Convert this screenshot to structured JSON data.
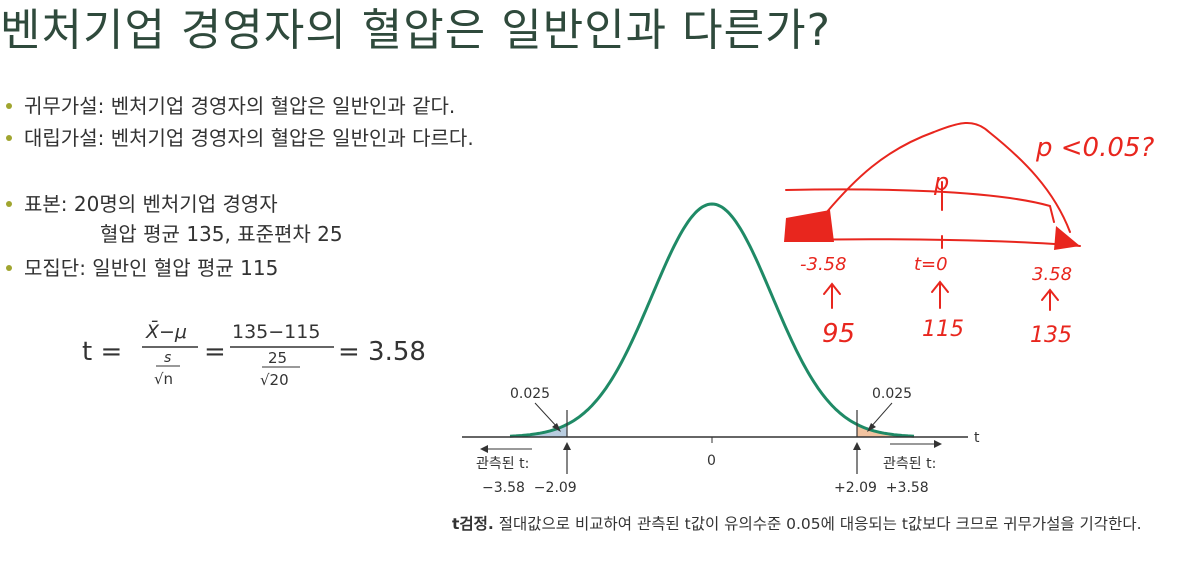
{
  "title": "벤처기업 경영자의 혈압은 일반인과 다른가?",
  "bullets": {
    "null_hypothesis": "귀무가설: 벤처기업 경영자의 혈압은 일반인과 같다.",
    "alt_hypothesis": "대립가설: 벤처기업 경영자의 혈압은 일반인과 다르다.",
    "sample_line1": "표본: 20명의 벤처기업 경영자",
    "sample_line2": "혈압 평균 135, 표준편차 25",
    "population": "모집단: 일반인 혈압 평균 115"
  },
  "formula": {
    "t_label": "t =",
    "num1": "X̄−μ",
    "den1_top": "s",
    "den1_bottom": "√n",
    "num2": "135−115",
    "den2_top": "25",
    "den2_bottom": "√20",
    "result": "= 3.58"
  },
  "figure": {
    "left_tail": "0.025",
    "right_tail": "0.025",
    "center_label": "0",
    "axis_label": "t",
    "observed_left": "관측된 t:",
    "observed_right": "관측된 t:",
    "left_values": "−3.58  −2.09",
    "right_values": "+2.09  +3.58",
    "colors": {
      "curve": "#1f8a66",
      "left_fill": "#b9cde0",
      "right_fill": "#f2c3a0"
    }
  },
  "caption": {
    "bold": "t검정.",
    "text": " 절대값으로 비교하여 관측된 t값이 유의수준 0.05에 대응되는 t값보다 크므로 귀무가설을 기각한다."
  },
  "annotation": {
    "p_question": "p <0.05?",
    "p_label": "p",
    "left_t": "-3.58",
    "center_t": "t=0",
    "right_t": "3.58",
    "left_val": "95",
    "center_val": "115",
    "right_val": "135",
    "color": "#e8261e"
  }
}
